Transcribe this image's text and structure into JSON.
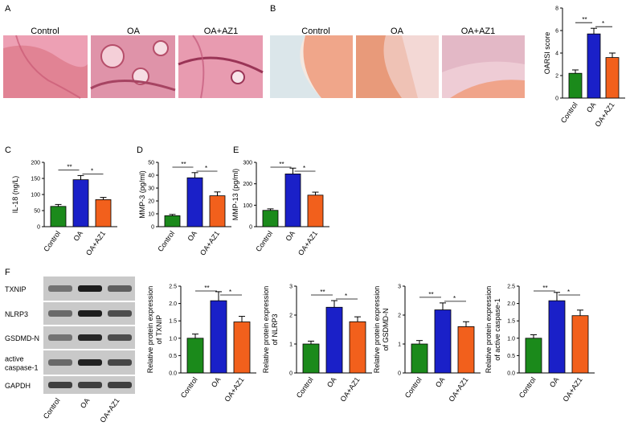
{
  "panels": {
    "A": {
      "letter": "A",
      "groups": [
        "Control",
        "OA",
        "OA+AZ1"
      ]
    },
    "B": {
      "letter": "B",
      "groups": [
        "Control",
        "OA",
        "OA+AZ1"
      ]
    },
    "F": {
      "letter": "F",
      "blot_labels": [
        "TXNIP",
        "NLRP3",
        "GSDMD-N",
        "active caspase-1",
        "GAPDH"
      ],
      "blot_label_lines": [
        [
          "TXNIP"
        ],
        [
          "NLRP3"
        ],
        [
          "GSDMD-N"
        ],
        [
          "active",
          "caspase-1"
        ],
        [
          "GAPDH"
        ]
      ],
      "groups": [
        "Control",
        "OA",
        "OA+AZ1"
      ]
    }
  },
  "colors": {
    "Control": "#1b8a1b",
    "OA": "#1a20c8",
    "OA+AZ1": "#f2601c"
  },
  "chart_data": [
    {
      "id": "oarsi",
      "panel": "B",
      "type": "bar",
      "categories": [
        "Control",
        "OA",
        "OA+AZ1"
      ],
      "values": [
        2.2,
        5.7,
        3.6
      ],
      "errors": [
        0.3,
        0.5,
        0.4
      ],
      "ylabel": "OARSI score",
      "ylabel_lines": [
        "OARSI score"
      ],
      "ylim": [
        0,
        8
      ],
      "yticks": [
        0,
        2,
        4,
        6,
        8
      ],
      "significance": [
        "**",
        "*"
      ]
    },
    {
      "id": "il18",
      "panel": "C",
      "type": "bar",
      "categories": [
        "Control",
        "OA",
        "OA+AZ1"
      ],
      "values": [
        63,
        146,
        84
      ],
      "errors": [
        6,
        13,
        7
      ],
      "ylabel": "IL-18 (ng/L)",
      "ylabel_lines": [
        "IL-18 (ng/L)"
      ],
      "ylim": [
        0,
        200
      ],
      "yticks": [
        0,
        50,
        100,
        150,
        200
      ],
      "significance": [
        "**",
        "*"
      ]
    },
    {
      "id": "mmp3",
      "panel": "D",
      "type": "bar",
      "categories": [
        "Control",
        "OA",
        "OA+AZ1"
      ],
      "values": [
        8.5,
        38,
        24
      ],
      "errors": [
        1,
        4,
        3
      ],
      "ylabel": "MMP-3 (pg/ml)",
      "ylabel_lines": [
        "MMP-3 (pg/ml)"
      ],
      "ylim": [
        0,
        50
      ],
      "yticks": [
        0,
        10,
        20,
        30,
        40,
        50
      ],
      "significance": [
        "**",
        "*"
      ]
    },
    {
      "id": "mmp13",
      "panel": "E",
      "type": "bar",
      "categories": [
        "Control",
        "OA",
        "OA+AZ1"
      ],
      "values": [
        76,
        246,
        147
      ],
      "errors": [
        7,
        27,
        14
      ],
      "ylabel": "MMP-13 (pg/ml)",
      "ylabel_lines": [
        "MMP-13 (pg/ml)"
      ],
      "ylim": [
        0,
        300
      ],
      "yticks": [
        0,
        100,
        200,
        300
      ],
      "significance": [
        "**",
        "*"
      ]
    },
    {
      "id": "txnip",
      "panel": "F",
      "type": "bar",
      "categories": [
        "Control",
        "OA",
        "OA+AZ1"
      ],
      "values": [
        1.0,
        2.08,
        1.47
      ],
      "errors": [
        0.12,
        0.26,
        0.16
      ],
      "ylabel": "Relative protein expression of TXNIP",
      "ylabel_lines": [
        "Relative protein expression",
        "of TXNIP"
      ],
      "ylim": [
        0,
        2.5
      ],
      "yticks": [
        0,
        0.5,
        1.0,
        1.5,
        2.0,
        2.5
      ],
      "significance": [
        "**",
        "*"
      ]
    },
    {
      "id": "nlrp3",
      "panel": "F",
      "type": "bar",
      "categories": [
        "Control",
        "OA",
        "OA+AZ1"
      ],
      "values": [
        1.0,
        2.27,
        1.77
      ],
      "errors": [
        0.1,
        0.23,
        0.17
      ],
      "ylabel": "Relative protein expression of NLRP3",
      "ylabel_lines": [
        "Relative protein expression",
        "of NLRP3"
      ],
      "ylim": [
        0,
        3
      ],
      "yticks": [
        0,
        1,
        2,
        3
      ],
      "significance": [
        "**",
        "*"
      ]
    },
    {
      "id": "gsdmd",
      "panel": "F",
      "type": "bar",
      "categories": [
        "Control",
        "OA",
        "OA+AZ1"
      ],
      "values": [
        1.0,
        2.18,
        1.6
      ],
      "errors": [
        0.12,
        0.24,
        0.17
      ],
      "ylabel": "Relative protein expression of GSDMD-N",
      "ylabel_lines": [
        "Relative protein expression",
        "of GSDMD-N"
      ],
      "ylim": [
        0,
        3
      ],
      "yticks": [
        0,
        1,
        2,
        3
      ],
      "significance": [
        "**",
        "*"
      ]
    },
    {
      "id": "casp1",
      "panel": "F",
      "type": "bar",
      "categories": [
        "Control",
        "OA",
        "OA+AZ1"
      ],
      "values": [
        1.0,
        2.08,
        1.65
      ],
      "errors": [
        0.1,
        0.24,
        0.16
      ],
      "ylabel": "Relative protein expression of active caspase-1",
      "ylabel_lines": [
        "Relative protein expression",
        "of active caspase-1"
      ],
      "ylim": [
        0,
        2.5
      ],
      "yticks": [
        0,
        0.5,
        1.0,
        1.5,
        2.0,
        2.5
      ],
      "significance": [
        "**",
        "*"
      ]
    }
  ]
}
